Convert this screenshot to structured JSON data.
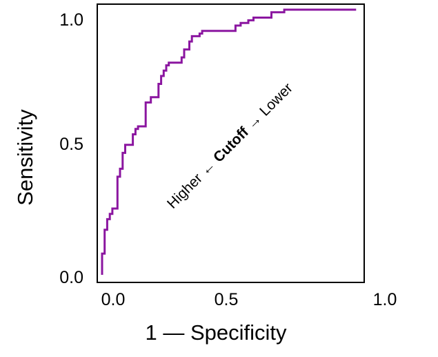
{
  "chart_data": {
    "type": "line",
    "title": "",
    "xlabel": "1 — Specificity",
    "ylabel": "Sensitivity",
    "xlim": [
      0.0,
      1.0
    ],
    "ylim": [
      0.0,
      1.0
    ],
    "x_ticks": [
      "0.0",
      "0.5",
      "1.0"
    ],
    "y_ticks": [
      "0.0",
      "0.5",
      "1.0"
    ],
    "grid": false,
    "legend": "none",
    "annotation": {
      "left": "Higher",
      "left_arrow": "←",
      "center": "Cutoff",
      "right_arrow": "→",
      "right": "Lower"
    },
    "series": [
      {
        "color": "#8B16A0",
        "points": [
          [
            0.0,
            0.0
          ],
          [
            0.0,
            0.08
          ],
          [
            0.01,
            0.08
          ],
          [
            0.01,
            0.17
          ],
          [
            0.02,
            0.17
          ],
          [
            0.02,
            0.21
          ],
          [
            0.03,
            0.21
          ],
          [
            0.03,
            0.23
          ],
          [
            0.04,
            0.23
          ],
          [
            0.04,
            0.25
          ],
          [
            0.06,
            0.25
          ],
          [
            0.06,
            0.37
          ],
          [
            0.07,
            0.37
          ],
          [
            0.07,
            0.4
          ],
          [
            0.08,
            0.4
          ],
          [
            0.08,
            0.46
          ],
          [
            0.09,
            0.46
          ],
          [
            0.09,
            0.49
          ],
          [
            0.12,
            0.49
          ],
          [
            0.12,
            0.53
          ],
          [
            0.13,
            0.53
          ],
          [
            0.13,
            0.55
          ],
          [
            0.14,
            0.55
          ],
          [
            0.14,
            0.56
          ],
          [
            0.17,
            0.56
          ],
          [
            0.17,
            0.65
          ],
          [
            0.19,
            0.65
          ],
          [
            0.19,
            0.67
          ],
          [
            0.22,
            0.67
          ],
          [
            0.22,
            0.72
          ],
          [
            0.23,
            0.72
          ],
          [
            0.23,
            0.75
          ],
          [
            0.24,
            0.75
          ],
          [
            0.24,
            0.77
          ],
          [
            0.25,
            0.77
          ],
          [
            0.25,
            0.79
          ],
          [
            0.26,
            0.79
          ],
          [
            0.26,
            0.8
          ],
          [
            0.31,
            0.8
          ],
          [
            0.31,
            0.82
          ],
          [
            0.32,
            0.82
          ],
          [
            0.32,
            0.85
          ],
          [
            0.34,
            0.85
          ],
          [
            0.34,
            0.88
          ],
          [
            0.35,
            0.88
          ],
          [
            0.35,
            0.9
          ],
          [
            0.38,
            0.9
          ],
          [
            0.38,
            0.91
          ],
          [
            0.39,
            0.91
          ],
          [
            0.39,
            0.92
          ],
          [
            0.52,
            0.92
          ],
          [
            0.52,
            0.94
          ],
          [
            0.54,
            0.94
          ],
          [
            0.54,
            0.95
          ],
          [
            0.57,
            0.95
          ],
          [
            0.57,
            0.96
          ],
          [
            0.59,
            0.96
          ],
          [
            0.59,
            0.97
          ],
          [
            0.66,
            0.97
          ],
          [
            0.66,
            0.99
          ],
          [
            0.71,
            0.99
          ],
          [
            0.71,
            1.0
          ],
          [
            0.99,
            1.0
          ]
        ]
      }
    ]
  }
}
